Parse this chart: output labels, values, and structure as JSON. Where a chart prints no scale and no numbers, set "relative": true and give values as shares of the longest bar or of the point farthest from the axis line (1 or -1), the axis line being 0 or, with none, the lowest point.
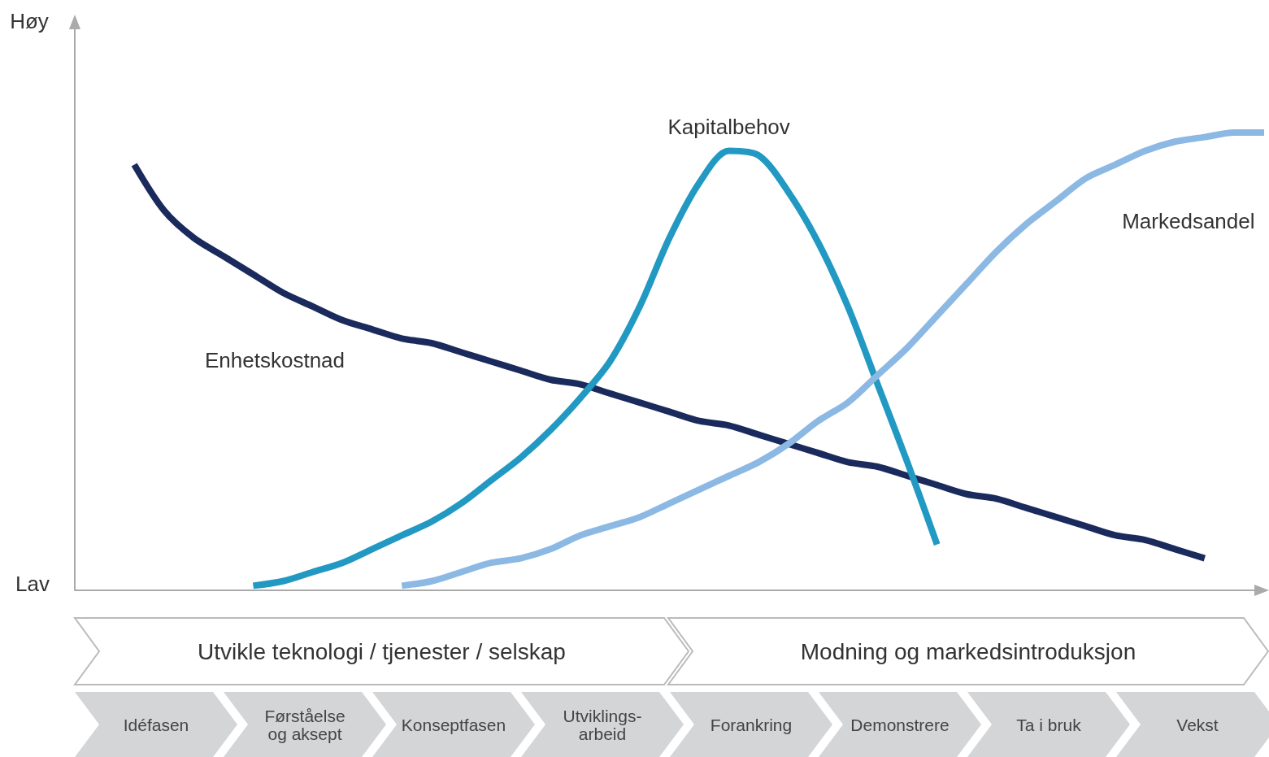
{
  "chart_data": {
    "type": "line",
    "relative": true,
    "marker": "none",
    "line_style": "solid",
    "categories": [
      null,
      null,
      null,
      null,
      null,
      null,
      null,
      null,
      null,
      null,
      null,
      null,
      null,
      null,
      null,
      null,
      null,
      null,
      null,
      null,
      null,
      null,
      null,
      null,
      null,
      null,
      null,
      null,
      null,
      null,
      null,
      null,
      null,
      null,
      null,
      null,
      null,
      null,
      null,
      null,
      null
    ],
    "series": [
      {
        "name": "Enhetskostnad",
        "color": "#1b2a5c",
        "values": [
          null,
          null,
          0.93,
          0.83,
          0.77,
          0.73,
          0.69,
          0.65,
          0.62,
          0.59,
          0.57,
          0.55,
          0.54,
          0.52,
          0.5,
          0.48,
          0.46,
          0.45,
          0.43,
          0.41,
          0.39,
          0.37,
          0.36,
          0.34,
          0.32,
          0.3,
          0.28,
          0.27,
          0.25,
          0.23,
          0.21,
          0.2,
          0.18,
          0.16,
          0.14,
          0.12,
          0.11,
          0.09,
          0.07,
          null,
          null
        ]
      },
      {
        "name": "Kapitalbehov",
        "color": "#2199c2",
        "values": [
          null,
          null,
          null,
          null,
          null,
          null,
          0.01,
          0.02,
          0.04,
          0.06,
          0.09,
          0.12,
          0.15,
          0.19,
          0.24,
          0.29,
          0.35,
          0.42,
          0.5,
          0.62,
          0.77,
          0.89,
          0.96,
          0.95,
          0.87,
          0.76,
          0.62,
          0.45,
          0.28,
          0.1,
          null,
          null,
          null,
          null,
          null,
          null,
          null,
          null,
          null,
          null,
          null
        ]
      },
      {
        "name": "Markedsandel",
        "color": "#8cb8e4",
        "values": [
          null,
          null,
          null,
          null,
          null,
          null,
          null,
          null,
          null,
          null,
          null,
          0.01,
          0.02,
          0.04,
          0.06,
          0.07,
          0.09,
          0.12,
          0.14,
          0.16,
          0.19,
          0.22,
          0.25,
          0.28,
          0.32,
          0.37,
          0.41,
          0.47,
          0.53,
          0.6,
          0.67,
          0.74,
          0.8,
          0.85,
          0.9,
          0.93,
          0.96,
          0.98,
          0.99,
          1,
          1
        ]
      }
    ],
    "annotations": [
      "Høy",
      "Lav",
      "Utvikle teknologi / tjenester / selskap",
      "Modning og markedsintroduksjon",
      "Idéfasen",
      "Førståelse\nog aksept",
      "Konseptfasen",
      "Utviklings-\narbeid",
      "Forankring",
      "Demonstrere",
      "Ta i bruk",
      "Vekst"
    ]
  }
}
